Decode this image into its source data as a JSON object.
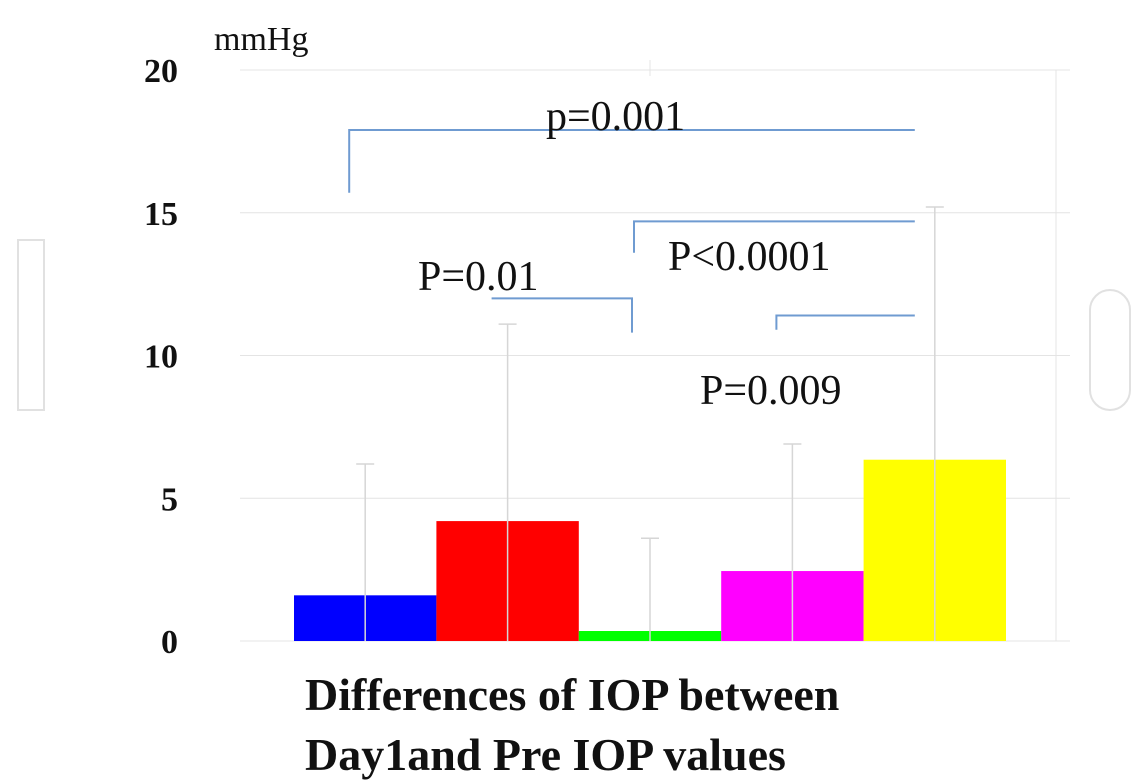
{
  "chart_data": {
    "type": "bar",
    "unit": "mmHg",
    "caption_lines": [
      "Differences of IOP between",
      "Day1and Pre IOP values"
    ],
    "ylim": [
      0,
      20
    ],
    "yticks": [
      0,
      5,
      10,
      15,
      20
    ],
    "grid": true,
    "values": [
      1.6,
      4.2,
      0.35,
      2.45,
      6.35
    ],
    "error_upper": [
      6.2,
      11.1,
      3.6,
      6.9,
      15.2
    ],
    "colors": [
      "#0000ff",
      "#ff0000",
      "#00ff00",
      "#ff00ff",
      "#ffff00"
    ],
    "annotations": [
      {
        "label": "p=0.001",
        "from_bar": 0,
        "to_bar": 4,
        "y": 17.9,
        "drop_to": 15.7,
        "drop_side": "left",
        "label_y": 17.9
      },
      {
        "label": "P<0.0001",
        "from_bar": 2,
        "to_bar": 4,
        "y": 14.7,
        "drop_to": 13.6,
        "drop_side": "left",
        "label_y": 13.0
      },
      {
        "label": "P=0.01",
        "from_bar": 1,
        "to_bar": 2,
        "y": 12.0,
        "drop_to": 10.8,
        "drop_side": "right",
        "label_y": 12.3
      },
      {
        "label": "P=0.009",
        "from_bar": 3,
        "to_bar": 4,
        "y": 11.4,
        "drop_to": 10.9,
        "drop_side": "left",
        "label_y": 8.3
      }
    ]
  }
}
